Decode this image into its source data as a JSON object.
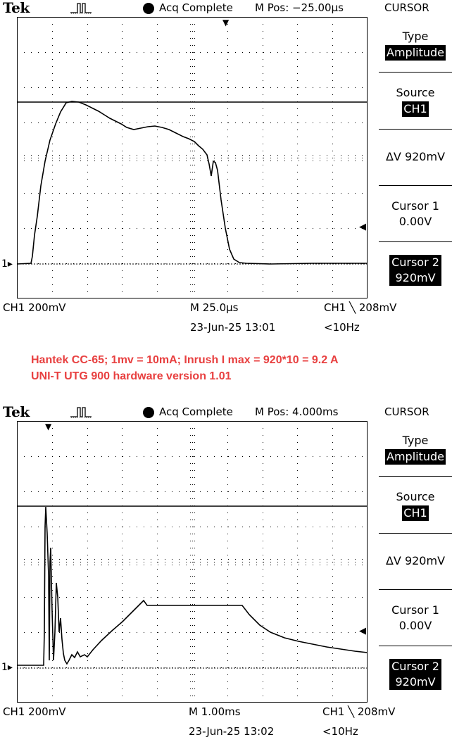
{
  "scopes": [
    {
      "brand": "Tek",
      "acquisition_status": "Acq Complete",
      "horizontal_position": "M Pos: −25.00µs",
      "menu_title": "CURSOR",
      "menu": {
        "type_label": "Type",
        "type_value": "Amplitude",
        "source_label": "Source",
        "source_value": "CH1",
        "delta_v": "ΔV 920mV",
        "cursor1_label": "Cursor 1",
        "cursor1_value": "0.00V",
        "cursor2_label": "Cursor 2",
        "cursor2_value": "920mV"
      },
      "channel_marker": "1",
      "channel_scale": "CH1  200mV",
      "timebase": "M 25.0µs",
      "trigger": "CH1 ╲ 208mV",
      "datetime": "23-Jun-25 13:01",
      "frequency": "<10Hz"
    },
    {
      "brand": "Tek",
      "acquisition_status": "Acq Complete",
      "horizontal_position": "M Pos: 4.000ms",
      "menu_title": "CURSOR",
      "menu": {
        "type_label": "Type",
        "type_value": "Amplitude",
        "source_label": "Source",
        "source_value": "CH1",
        "delta_v": "ΔV 920mV",
        "cursor1_label": "Cursor 1",
        "cursor1_value": "0.00V",
        "cursor2_label": "Cursor 2",
        "cursor2_value": "920mV"
      },
      "channel_marker": "1",
      "channel_scale": "CH1  200mV",
      "timebase": "M 1.00ms",
      "trigger": "CH1 ╲ 208mV",
      "datetime": "23-Jun-25 13:02",
      "frequency": "<10Hz"
    }
  ],
  "annotation": {
    "line1": "Hantek CC-65; 1mv = 10mA; Inrush I max = 920*10 = 9.2 A",
    "line2": "UNI-T UTG 900 hardware version 1.01"
  },
  "colors": {
    "annotation": "#e84040",
    "trace": "#000000",
    "grid": "#000000"
  }
}
